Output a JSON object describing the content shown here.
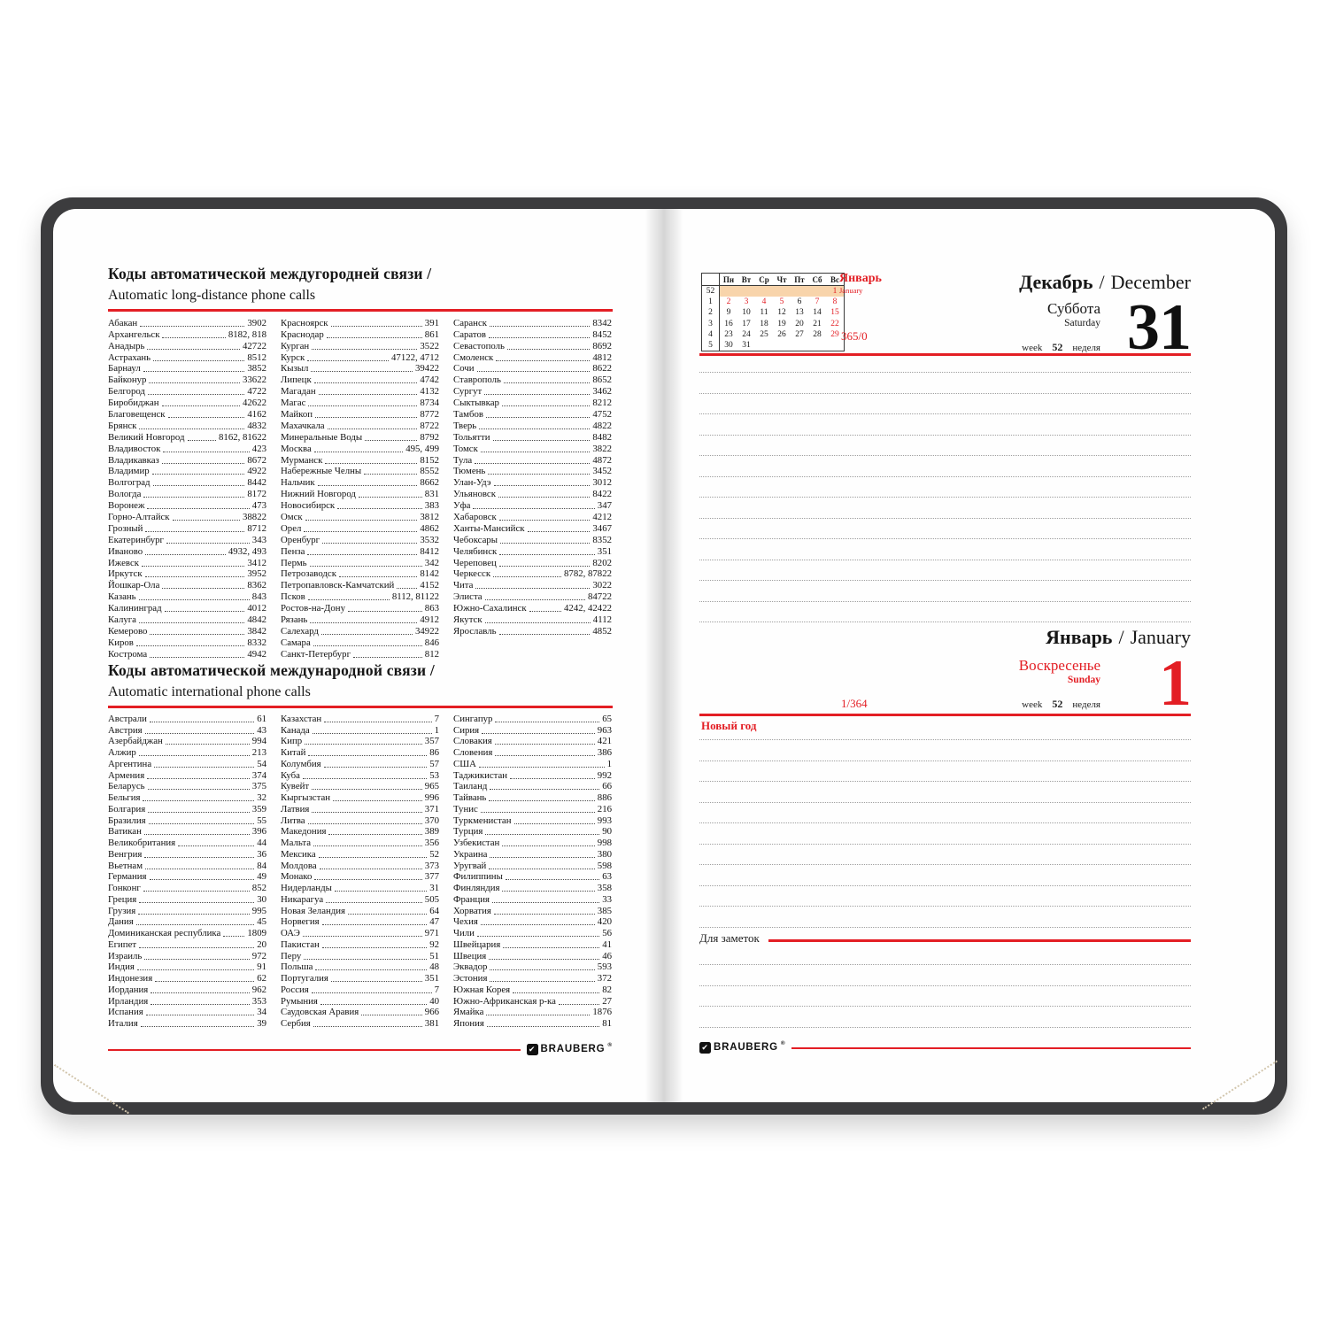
{
  "accent_red": "#e31e24",
  "cover_color": "#3c3c3e",
  "left_page": {
    "section_long_distance": {
      "title_ru": "Коды автоматической междугородней связи /",
      "title_en": "Automatic long-distance phone calls",
      "columns": [
        [
          [
            "Абакан",
            "3902"
          ],
          [
            "Архангельск",
            "8182, 818"
          ],
          [
            "Анадырь",
            "42722"
          ],
          [
            "Астрахань",
            "8512"
          ],
          [
            "Барнаул",
            "3852"
          ],
          [
            "Байконур",
            "33622"
          ],
          [
            "Белгород",
            "4722"
          ],
          [
            "Биробиджан",
            "42622"
          ],
          [
            "Благовещенск",
            "4162"
          ],
          [
            "Брянск",
            "4832"
          ],
          [
            "Великий Новгород",
            "8162, 81622"
          ],
          [
            "Владивосток",
            "423"
          ],
          [
            "Владикавказ",
            "8672"
          ],
          [
            "Владимир",
            "4922"
          ],
          [
            "Волгоград",
            "8442"
          ],
          [
            "Вологда",
            "8172"
          ],
          [
            "Воронеж",
            "473"
          ],
          [
            "Горно-Алтайск",
            "38822"
          ],
          [
            "Грозный",
            "8712"
          ],
          [
            "Екатеринбург",
            "343"
          ],
          [
            "Иваново",
            "4932, 493"
          ],
          [
            "Ижевск",
            "3412"
          ],
          [
            "Иркутск",
            "3952"
          ],
          [
            "Йошкар-Ола",
            "8362"
          ],
          [
            "Казань",
            "843"
          ],
          [
            "Калининград",
            "4012"
          ],
          [
            "Калуга",
            "4842"
          ],
          [
            "Кемерово",
            "3842"
          ],
          [
            "Киров",
            "8332"
          ],
          [
            "Кострома",
            "4942"
          ]
        ],
        [
          [
            "Красноярск",
            "391"
          ],
          [
            "Краснодар",
            "861"
          ],
          [
            "Курган",
            "3522"
          ],
          [
            "Курск",
            "47122, 4712"
          ],
          [
            "Кызыл",
            "39422"
          ],
          [
            "Липецк",
            "4742"
          ],
          [
            "Магадан",
            "4132"
          ],
          [
            "Магас",
            "8734"
          ],
          [
            "Майкоп",
            "8772"
          ],
          [
            "Махачкала",
            "8722"
          ],
          [
            "Минеральные Воды",
            "8792"
          ],
          [
            "Москва",
            "495, 499"
          ],
          [
            "Мурманск",
            "8152"
          ],
          [
            "Набережные Челны",
            "8552"
          ],
          [
            "Нальчик",
            "8662"
          ],
          [
            "Нижний Новгород",
            "831"
          ],
          [
            "Новосибирск",
            "383"
          ],
          [
            "Омск",
            "3812"
          ],
          [
            "Орел",
            "4862"
          ],
          [
            "Оренбург",
            "3532"
          ],
          [
            "Пенза",
            "8412"
          ],
          [
            "Пермь",
            "342"
          ],
          [
            "Петрозаводск",
            "8142"
          ],
          [
            "Петропавловск-Камчатский",
            "4152"
          ],
          [
            "Псков",
            "8112, 81122"
          ],
          [
            "Ростов-на-Дону",
            "863"
          ],
          [
            "Рязань",
            "4912"
          ],
          [
            "Салехард",
            "34922"
          ],
          [
            "Самара",
            "846"
          ],
          [
            "Санкт-Петербург",
            "812"
          ]
        ],
        [
          [
            "Саранск",
            "8342"
          ],
          [
            "Саратов",
            "8452"
          ],
          [
            "Севастополь",
            "8692"
          ],
          [
            "Смоленск",
            "4812"
          ],
          [
            "Сочи",
            "8622"
          ],
          [
            "Ставрополь",
            "8652"
          ],
          [
            "Сургут",
            "3462"
          ],
          [
            "Сыктывкар",
            "8212"
          ],
          [
            "Тамбов",
            "4752"
          ],
          [
            "Тверь",
            "4822"
          ],
          [
            "Тольятти",
            "8482"
          ],
          [
            "Томск",
            "3822"
          ],
          [
            "Тула",
            "4872"
          ],
          [
            "Тюмень",
            "3452"
          ],
          [
            "Улан-Удэ",
            "3012"
          ],
          [
            "Ульяновск",
            "8422"
          ],
          [
            "Уфа",
            "347"
          ],
          [
            "Хабаровск",
            "4212"
          ],
          [
            "Ханты-Мансийск",
            "3467"
          ],
          [
            "Чебоксары",
            "8352"
          ],
          [
            "Челябинск",
            "351"
          ],
          [
            "Череповец",
            "8202"
          ],
          [
            "Черкесск",
            "8782, 87822"
          ],
          [
            "Чита",
            "3022"
          ],
          [
            "Элиста",
            "84722"
          ],
          [
            "Южно-Сахалинск",
            "4242, 42422"
          ],
          [
            "Якутск",
            "4112"
          ],
          [
            "Ярославль",
            "4852"
          ]
        ]
      ]
    },
    "section_international": {
      "title_ru": "Коды автоматической международной связи /",
      "title_en": "Automatic international phone calls",
      "columns": [
        [
          [
            "Австрали",
            "61"
          ],
          [
            "Австрия",
            "43"
          ],
          [
            "Азербайджан",
            "994"
          ],
          [
            "Алжир",
            "213"
          ],
          [
            "Аргентина",
            "54"
          ],
          [
            "Армения",
            "374"
          ],
          [
            "Беларусь",
            "375"
          ],
          [
            "Бельгия",
            "32"
          ],
          [
            "Болгария",
            "359"
          ],
          [
            "Бразилия",
            "55"
          ],
          [
            "Ватикан",
            "396"
          ],
          [
            "Великобритания",
            "44"
          ],
          [
            "Венгрия",
            "36"
          ],
          [
            "Вьетнам",
            "84"
          ],
          [
            "Германия",
            "49"
          ],
          [
            "Гонконг",
            "852"
          ],
          [
            "Греция",
            "30"
          ],
          [
            "Грузия",
            "995"
          ],
          [
            "Дания",
            "45"
          ],
          [
            "Доминиканская республика",
            "1809"
          ],
          [
            "Египет",
            "20"
          ],
          [
            "Израиль",
            "972"
          ],
          [
            "Индия",
            "91"
          ],
          [
            "Индонезия",
            "62"
          ],
          [
            "Иордания",
            "962"
          ],
          [
            "Ирландия",
            "353"
          ],
          [
            "Испания",
            "34"
          ],
          [
            "Италия",
            "39"
          ]
        ],
        [
          [
            "Казахстан",
            "7"
          ],
          [
            "Канада",
            "1"
          ],
          [
            "Кипр",
            "357"
          ],
          [
            "Китай",
            "86"
          ],
          [
            "Колумбия",
            "57"
          ],
          [
            "Куба",
            "53"
          ],
          [
            "Кувейт",
            "965"
          ],
          [
            "Кыргызстан",
            "996"
          ],
          [
            "Латвия",
            "371"
          ],
          [
            "Литва",
            "370"
          ],
          [
            "Македония",
            "389"
          ],
          [
            "Мальта",
            "356"
          ],
          [
            "Мексика",
            "52"
          ],
          [
            "Молдова",
            "373"
          ],
          [
            "Монако",
            "377"
          ],
          [
            "Нидерланды",
            "31"
          ],
          [
            "Никарагуа",
            "505"
          ],
          [
            "Новая Зеландия",
            "64"
          ],
          [
            "Норвегия",
            "47"
          ],
          [
            "ОАЭ",
            "971"
          ],
          [
            "Пакистан",
            "92"
          ],
          [
            "Перу",
            "51"
          ],
          [
            "Польша",
            "48"
          ],
          [
            "Португалия",
            "351"
          ],
          [
            "Россия",
            "7"
          ],
          [
            "Румыния",
            "40"
          ],
          [
            "Саудовская Аравия",
            "966"
          ],
          [
            "Сербия",
            "381"
          ]
        ],
        [
          [
            "Сингапур",
            "65"
          ],
          [
            "Сирия",
            "963"
          ],
          [
            "Словакия",
            "421"
          ],
          [
            "Словения",
            "386"
          ],
          [
            "США",
            "1"
          ],
          [
            "Таджикистан",
            "992"
          ],
          [
            "Таиланд",
            "66"
          ],
          [
            "Тайвань",
            "886"
          ],
          [
            "Тунис",
            "216"
          ],
          [
            "Туркменистан",
            "993"
          ],
          [
            "Турция",
            "90"
          ],
          [
            "Узбекистан",
            "998"
          ],
          [
            "Украина",
            "380"
          ],
          [
            "Уругвай",
            "598"
          ],
          [
            "Филиппины",
            "63"
          ],
          [
            "Финляндия",
            "358"
          ],
          [
            "Франция",
            "33"
          ],
          [
            "Хорватия",
            "385"
          ],
          [
            "Чехия",
            "420"
          ],
          [
            "Чили",
            "56"
          ],
          [
            "Швейцария",
            "41"
          ],
          [
            "Швеция",
            "46"
          ],
          [
            "Эквадор",
            "593"
          ],
          [
            "Эстония",
            "372"
          ],
          [
            "Южная Корея",
            "82"
          ],
          [
            "Южно-Африканская р-ка",
            "27"
          ],
          [
            "Ямайка",
            "1876"
          ],
          [
            "Япония",
            "81"
          ]
        ]
      ]
    },
    "brand": {
      "name": "BRAUBERG",
      "reg": "®",
      "mark": "✔"
    }
  },
  "right_page": {
    "mini_calendar": {
      "month_ru": "Январь",
      "month_en": "January",
      "counter": "365/0",
      "day_headers": [
        "Пн",
        "Вт",
        "Ср",
        "Чт",
        "Пт",
        "Сб",
        "Вс"
      ],
      "weeks": [
        {
          "num": "52",
          "days": [
            "",
            "",
            "",
            "",
            "",
            "",
            "1"
          ],
          "red_idx": [
            6
          ],
          "highlight": true
        },
        {
          "num": "1",
          "days": [
            "2",
            "3",
            "4",
            "5",
            "6",
            "7",
            "8"
          ],
          "red_idx": [
            0,
            1,
            2,
            3,
            5,
            6
          ],
          "highlight": false
        },
        {
          "num": "2",
          "days": [
            "9",
            "10",
            "11",
            "12",
            "13",
            "14",
            "15"
          ],
          "red_idx": [
            6
          ],
          "highlight": false
        },
        {
          "num": "3",
          "days": [
            "16",
            "17",
            "18",
            "19",
            "20",
            "21",
            "22"
          ],
          "red_idx": [
            6
          ],
          "highlight": false
        },
        {
          "num": "4",
          "days": [
            "23",
            "24",
            "25",
            "26",
            "27",
            "28",
            "29"
          ],
          "red_idx": [
            6
          ],
          "highlight": false
        },
        {
          "num": "5",
          "days": [
            "30",
            "31",
            "",
            "",
            "",
            "",
            ""
          ],
          "red_idx": [],
          "highlight": false
        }
      ]
    },
    "december": {
      "month_ru": "Декабрь",
      "divider": "/",
      "month_en": "December",
      "weekday_ru": "Суббота",
      "weekday_en": "Saturday",
      "week_word_en": "week",
      "week_number": "52",
      "week_word_ru": "неделя",
      "day": "31"
    },
    "january": {
      "month_ru": "Январь",
      "divider": "/",
      "month_en": "January",
      "weekday_ru": "Воскресенье",
      "weekday_en": "Sunday",
      "week_word_en": "week",
      "week_number": "52",
      "week_word_ru": "неделя",
      "day": "1",
      "counter": "1/364",
      "holiday": "Новый год"
    },
    "notes_label": "Для заметок",
    "brand": {
      "name": "BRAUBERG",
      "reg": "®",
      "mark": "✔"
    }
  }
}
